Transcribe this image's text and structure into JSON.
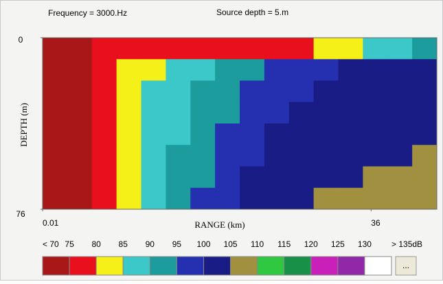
{
  "chart_data": {
    "type": "heatmap",
    "title": "Frequency = 3000.Hz",
    "subtitle": "Source depth = 5.m",
    "ylabel": "DEPTH (m)",
    "xlabel": "RANGE (km)",
    "xlim": [
      0.01,
      43.2
    ],
    "xticks": [
      0.01,
      36
    ],
    "ylim": [
      0,
      76
    ],
    "yticks": [
      0,
      76
    ],
    "y_inverted": true,
    "z": [
      [
        66,
        66,
        77,
        77,
        77,
        77,
        77,
        77,
        77,
        77,
        77,
        81,
        81,
        86,
        86,
        91
      ],
      [
        66,
        68,
        77,
        81,
        82,
        86,
        87,
        91,
        92,
        96,
        96,
        97,
        101,
        101,
        101,
        101
      ],
      [
        66,
        68,
        77,
        81,
        86,
        86,
        91,
        91,
        96,
        96,
        97,
        101,
        101,
        101,
        101,
        101
      ],
      [
        66,
        69,
        78,
        81,
        86,
        88,
        91,
        92,
        96,
        97,
        101,
        101,
        101,
        101,
        101,
        101
      ],
      [
        66,
        69,
        78,
        82,
        86,
        88,
        91,
        96,
        96,
        101,
        101,
        101,
        101,
        101,
        101,
        102
      ],
      [
        66,
        69,
        78,
        82,
        86,
        91,
        91,
        96,
        97,
        101,
        101,
        101,
        101,
        101,
        102,
        106
      ],
      [
        66,
        69,
        78,
        82,
        87,
        91,
        92,
        96,
        101,
        101,
        101,
        101,
        102,
        106,
        106,
        107
      ],
      [
        66,
        69,
        79,
        82,
        87,
        91,
        96,
        97,
        101,
        101,
        101,
        106,
        106,
        107,
        107,
        106
      ]
    ],
    "levels": [
      {
        "value": 70,
        "label": "< 70"
      },
      75,
      80,
      85,
      90,
      95,
      100,
      105,
      110,
      115,
      120,
      125,
      130,
      {
        "value": 135,
        "label": "> 135dB"
      }
    ],
    "colors": [
      "#a81818",
      "#e8101c",
      "#f4f018",
      "#3cc8c8",
      "#1c9c9c",
      "#2430b0",
      "#181c84",
      "#a09040",
      "#30c840",
      "#189048",
      "#c820b8",
      "#9028a8",
      "#ffffff"
    ],
    "button": "..."
  }
}
